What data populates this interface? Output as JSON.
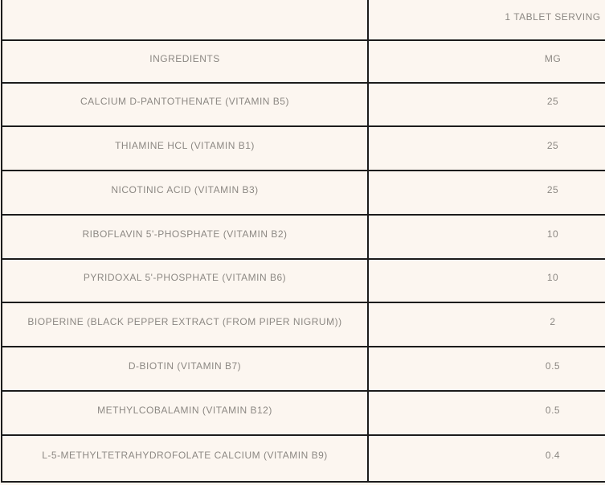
{
  "colors": {
    "background": "#FCF6F0",
    "border": "#1C1C1C",
    "text": "#8C8883"
  },
  "table": {
    "serving_header": "1 TABLET SERVING",
    "ingredients_header": "INGREDIENTS",
    "unit_header": "MG",
    "rows": [
      {
        "ingredient": "CALCIUM D-PANTOTHENATE (VITAMIN B5)",
        "mg": "25"
      },
      {
        "ingredient": "THIAMINE HCL (VITAMIN B1)",
        "mg": "25"
      },
      {
        "ingredient": "NICOTINIC ACID (VITAMIN B3)",
        "mg": "25"
      },
      {
        "ingredient": "RIBOFLAVIN 5'-PHOSPHATE (VITAMIN B2)",
        "mg": "10"
      },
      {
        "ingredient": "PYRIDOXAL 5'-PHOSPHATE (VITAMIN B6)",
        "mg": "10"
      },
      {
        "ingredient": "BIOPERINE (BLACK PEPPER EXTRACT (FROM PIPER NIGRUM))",
        "mg": "2"
      },
      {
        "ingredient": "D-BIOTIN (VITAMIN B7)",
        "mg": "0.5"
      },
      {
        "ingredient": "METHYLCOBALAMIN (VITAMIN B12)",
        "mg": "0.5"
      },
      {
        "ingredient": "L-5-METHYLTETRAHYDROFOLATE CALCIUM (VITAMIN B9)",
        "mg": "0.4"
      }
    ]
  },
  "chart_data": {
    "type": "table",
    "title": "",
    "serving_note": "1 TABLET SERVING",
    "columns": [
      "INGREDIENTS",
      "MG"
    ],
    "rows": [
      [
        "CALCIUM D-PANTOTHENATE (VITAMIN B5)",
        25
      ],
      [
        "THIAMINE HCL (VITAMIN B1)",
        25
      ],
      [
        "NICOTINIC ACID (VITAMIN B3)",
        25
      ],
      [
        "RIBOFLAVIN 5'-PHOSPHATE (VITAMIN B2)",
        10
      ],
      [
        "PYRIDOXAL 5'-PHOSPHATE (VITAMIN B6)",
        10
      ],
      [
        "BIOPERINE (BLACK PEPPER EXTRACT (FROM PIPER NIGRUM))",
        2
      ],
      [
        "D-BIOTIN (VITAMIN B7)",
        0.5
      ],
      [
        "METHYLCOBALAMIN (VITAMIN B12)",
        0.5
      ],
      [
        "L-5-METHYLTETRAHYDROFOLATE CALCIUM (VITAMIN B9)",
        0.4
      ]
    ]
  }
}
